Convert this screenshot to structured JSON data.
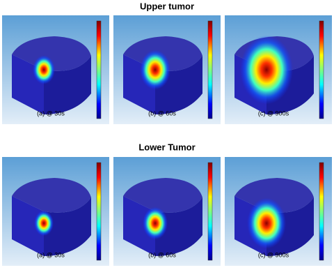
{
  "rows": [
    {
      "title": "Upper tumor",
      "panels": [
        {
          "caption": "(a) @ 30s"
        },
        {
          "caption": "(b) @ 60s"
        },
        {
          "caption": "(c) @ 900s"
        }
      ]
    },
    {
      "title": "Lower Tumor",
      "panels": [
        {
          "caption": "(a) @ 30s"
        },
        {
          "caption": "(b) @ 60s"
        },
        {
          "caption": "(c) @ 900s"
        }
      ]
    }
  ]
}
